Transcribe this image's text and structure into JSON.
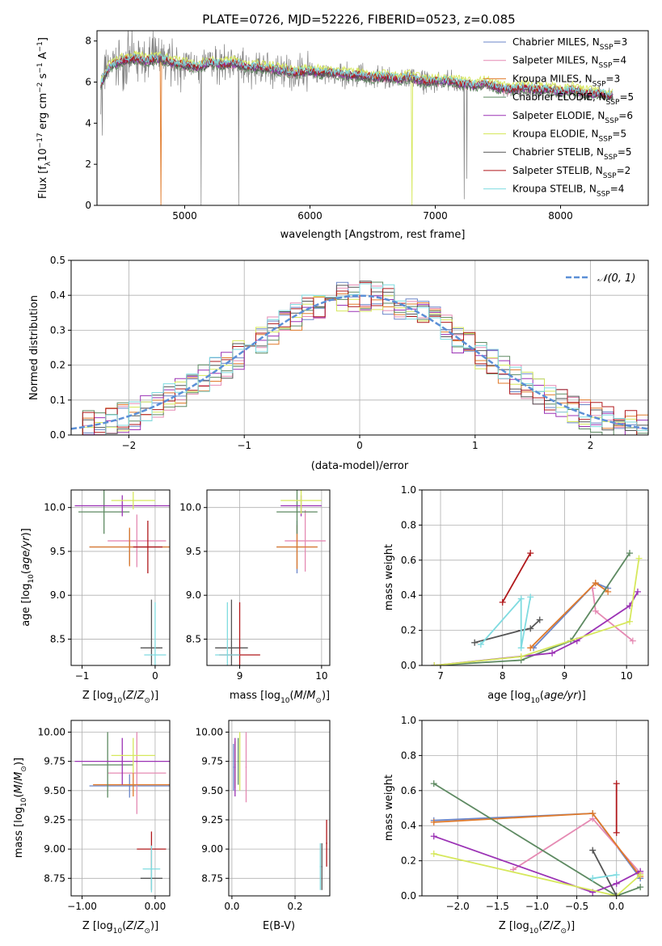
{
  "figure": {
    "title": "PLATE=0726, MJD=52226, FIBERID=0523, z=0.085"
  },
  "colors": {
    "Chabrier MILES": "#6b86c9",
    "Salpeter MILES": "#e58ab3",
    "Kroupa MILES": "#e07a2a",
    "Chabrier ELODIE": "#5e8a62",
    "Salpeter ELODIE": "#9b32b5",
    "Kroupa ELODIE": "#d6e85c",
    "Chabrier STELIB": "#555555",
    "Salpeter STELIB": "#b0181b",
    "Kroupa STELIB": "#7fdbe0",
    "data": "#808080",
    "normal": "#5b8fd6"
  },
  "chart_data": [
    {
      "type": "line",
      "id": "spectrum",
      "xlabel": "wavelength [Angstrom, rest frame]",
      "ylabel": "Flux [f",
      "xlim": [
        4300,
        8700
      ],
      "ylim": [
        0,
        8.5
      ],
      "xticks": [
        5000,
        6000,
        7000,
        8000
      ],
      "yticks": [
        0,
        2,
        4,
        6,
        8
      ],
      "legend_position": "top-right",
      "legend": [
        {
          "label": "Chabrier MILES",
          "nssp": "3"
        },
        {
          "label": "Salpeter MILES",
          "nssp": "4"
        },
        {
          "label": "Kroupa MILES",
          "nssp": "3"
        },
        {
          "label": "Chabrier ELODIE",
          "nssp": "5"
        },
        {
          "label": "Salpeter ELODIE",
          "nssp": "6"
        },
        {
          "label": "Kroupa ELODIE",
          "nssp": "5"
        },
        {
          "label": "Chabrier STELIB",
          "nssp": "5"
        },
        {
          "label": "Salpeter STELIB",
          "nssp": "2"
        },
        {
          "label": "Kroupa STELIB",
          "nssp": "4"
        }
      ],
      "continuum_x": [
        4330,
        4400,
        4500,
        4600,
        4700,
        4800,
        4900,
        5000,
        5100,
        5200,
        5300,
        5400,
        5500,
        5600,
        5700,
        5800,
        5900,
        6000,
        6100,
        6200,
        6300,
        6400,
        6500,
        6600,
        6700,
        6800,
        6900,
        7000,
        7100,
        7200,
        7300,
        7400,
        7500,
        7600,
        7700,
        7800,
        7900,
        8000,
        8100,
        8200,
        8300,
        8400
      ],
      "continuum_y": [
        5.9,
        6.7,
        7.0,
        7.1,
        7.0,
        7.1,
        6.9,
        6.8,
        6.7,
        6.9,
        6.8,
        6.9,
        6.7,
        6.7,
        6.6,
        6.5,
        6.4,
        6.5,
        6.4,
        6.4,
        6.3,
        6.3,
        6.2,
        6.2,
        6.1,
        6.2,
        6.0,
        6.0,
        6.0,
        5.9,
        5.8,
        5.9,
        5.7,
        5.6,
        5.7,
        5.6,
        5.6,
        5.5,
        5.6,
        5.4,
        5.4,
        5.3
      ]
    },
    {
      "type": "line",
      "id": "residual-histogram",
      "xlabel": "(data-model)/error",
      "ylabel": "Normed distribution",
      "xlim": [
        -2.5,
        2.5
      ],
      "ylim": [
        0,
        0.5
      ],
      "xticks": [
        -2,
        -1,
        0,
        1,
        2
      ],
      "yticks": [
        0.0,
        0.1,
        0.2,
        0.3,
        0.4,
        0.5
      ],
      "legend": [
        {
          "label": "𝒩(0, 1)"
        }
      ],
      "legend_position": "top-right"
    },
    {
      "type": "scatter",
      "id": "age-vs-z",
      "xlabel_main": "Z [log",
      "ylabel_main": "age  [log",
      "xlim": [
        -1.15,
        0.2
      ],
      "ylim": [
        8.2,
        10.2
      ],
      "xticks": [
        -1,
        0
      ],
      "yticks": [
        8.5,
        9.0,
        9.5,
        10.0
      ]
    },
    {
      "type": "scatter",
      "id": "age-vs-mass",
      "xlabel_main": "mass [log",
      "xlim": [
        8.6,
        10.1
      ],
      "ylim": [
        8.2,
        10.2
      ],
      "xticks": [
        9,
        10
      ],
      "yticks": [
        8.5,
        9.0,
        9.5,
        10.0
      ]
    },
    {
      "type": "line",
      "id": "weight-vs-age",
      "xlabel_main": "age  [log",
      "ylabel": "mass weight",
      "xlim": [
        6.7,
        10.35
      ],
      "ylim": [
        0,
        1.0
      ],
      "xticks": [
        7,
        8,
        9,
        10
      ],
      "yticks": [
        0.0,
        0.2,
        0.4,
        0.6,
        0.8,
        1.0
      ]
    },
    {
      "type": "scatter",
      "id": "mass-vs-z",
      "xlabel_main": "Z [log",
      "ylabel_main": "mass [log",
      "xlim": [
        -1.15,
        0.2
      ],
      "ylim": [
        8.6,
        10.1
      ],
      "xticks": [
        -1,
        0
      ],
      "yticks": [
        8.75,
        9.0,
        9.25,
        9.5,
        9.75,
        10.0
      ]
    },
    {
      "type": "scatter",
      "id": "mass-vs-ebv",
      "xlabel": "E(B-V)",
      "xlim": [
        -0.01,
        0.31
      ],
      "ylim": [
        8.6,
        10.1
      ],
      "xticks": [
        0.0,
        0.2
      ],
      "yticks": [
        8.75,
        9.0,
        9.25,
        9.5,
        9.75,
        10.0
      ]
    },
    {
      "type": "line",
      "id": "weight-vs-z",
      "xlabel_main": "Z [log",
      "ylabel": "mass weight",
      "xlim": [
        -2.45,
        0.4
      ],
      "ylim": [
        0,
        1.0
      ],
      "xticks": [
        -2.0,
        -1.5,
        -1.0,
        -0.5,
        0.0
      ],
      "yticks": [
        0.0,
        0.2,
        0.4,
        0.6,
        0.8,
        1.0
      ]
    }
  ]
}
